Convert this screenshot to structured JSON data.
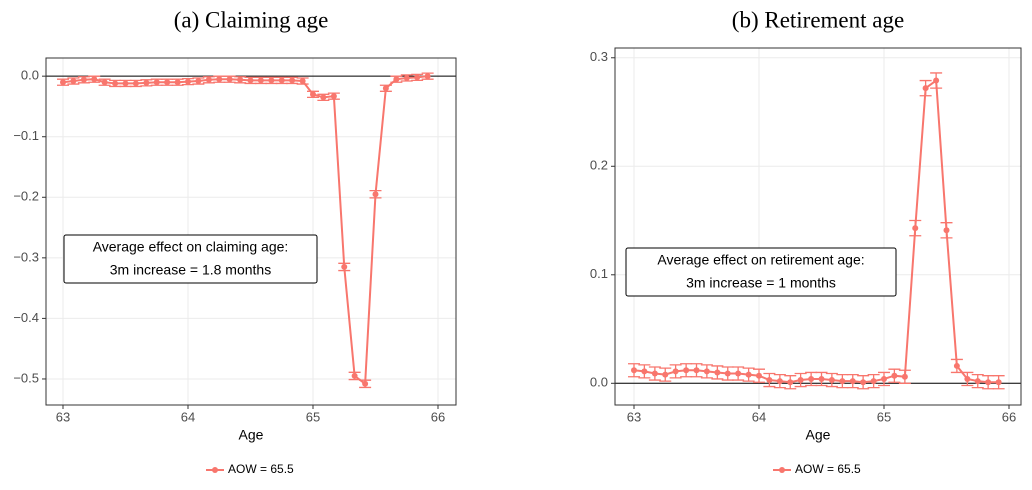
{
  "chart_data": [
    {
      "type": "line",
      "title": "(a) Claiming age",
      "x_label": "Age",
      "x": [
        63,
        63.083,
        63.167,
        63.25,
        63.333,
        63.417,
        63.5,
        63.583,
        63.667,
        63.75,
        63.833,
        63.917,
        64,
        64.083,
        64.167,
        64.25,
        64.333,
        64.417,
        64.5,
        64.583,
        64.667,
        64.75,
        64.833,
        64.917,
        65,
        65.083,
        65.167,
        65.25,
        65.333,
        65.417,
        65.5,
        65.583,
        65.667,
        65.75,
        65.833,
        65.917
      ],
      "series": [
        {
          "name": "AOW = 65.5",
          "color": "#F8766D",
          "values": [
            -0.01,
            -0.008,
            -0.006,
            -0.005,
            -0.01,
            -0.012,
            -0.012,
            -0.012,
            -0.011,
            -0.01,
            -0.01,
            -0.01,
            -0.009,
            -0.008,
            -0.006,
            -0.005,
            -0.005,
            -0.006,
            -0.007,
            -0.007,
            -0.007,
            -0.007,
            -0.007,
            -0.008,
            -0.03,
            -0.035,
            -0.033,
            -0.315,
            -0.495,
            -0.508,
            -0.195,
            -0.02,
            -0.005,
            -0.003,
            -0.002,
            0
          ],
          "errors": [
            0.005,
            0.005,
            0.005,
            0.005,
            0.005,
            0.005,
            0.005,
            0.005,
            0.005,
            0.005,
            0.005,
            0.005,
            0.005,
            0.005,
            0.005,
            0.005,
            0.005,
            0.005,
            0.005,
            0.005,
            0.005,
            0.005,
            0.005,
            0.005,
            0.005,
            0.005,
            0.005,
            0.006,
            0.006,
            0.006,
            0.006,
            0.005,
            0.005,
            0.005,
            0.005,
            0.005
          ]
        }
      ],
      "xlim": [
        62.864,
        66.144
      ],
      "xticks": [
        63,
        64,
        65,
        66
      ],
      "ylim": [
        -0.543,
        0.03
      ],
      "yticks": [
        {
          "value": -0.5,
          "label": "−0.5"
        },
        {
          "value": -0.4,
          "label": "−0.4"
        },
        {
          "value": -0.3,
          "label": "−0.3"
        },
        {
          "value": -0.2,
          "label": "−0.2"
        },
        {
          "value": -0.1,
          "label": "−0.1"
        },
        {
          "value": 0,
          "label": "0.0"
        }
      ],
      "hline": 0,
      "grid": true,
      "annotation": [
        "Average effect on claiming age:",
        "3m increase = 1.8 months"
      ]
    },
    {
      "type": "line",
      "title": "(b) Retirement age",
      "x_label": "Age",
      "x": [
        63,
        63.083,
        63.167,
        63.25,
        63.333,
        63.417,
        63.5,
        63.583,
        63.667,
        63.75,
        63.833,
        63.917,
        64,
        64.083,
        64.167,
        64.25,
        64.333,
        64.417,
        64.5,
        64.583,
        64.667,
        64.75,
        64.833,
        64.917,
        65,
        65.083,
        65.167,
        65.25,
        65.333,
        65.417,
        65.5,
        65.583,
        65.667,
        65.75,
        65.833,
        65.917
      ],
      "series": [
        {
          "name": "AOW = 65.5",
          "color": "#F8766D",
          "values": [
            0.012,
            0.011,
            0.009,
            0.008,
            0.011,
            0.012,
            0.012,
            0.011,
            0.01,
            0.009,
            0.009,
            0.008,
            0.007,
            0.003,
            0.002,
            0.001,
            0.003,
            0.004,
            0.004,
            0.003,
            0.002,
            0.002,
            0.001,
            0.002,
            0.004,
            0.007,
            0.006,
            0.143,
            0.272,
            0.279,
            0.141,
            0.016,
            0.004,
            0.002,
            0.001,
            0.001
          ],
          "errors": [
            0.006,
            0.006,
            0.006,
            0.006,
            0.006,
            0.006,
            0.006,
            0.006,
            0.006,
            0.006,
            0.006,
            0.006,
            0.006,
            0.006,
            0.006,
            0.006,
            0.006,
            0.006,
            0.006,
            0.006,
            0.006,
            0.006,
            0.006,
            0.006,
            0.006,
            0.006,
            0.006,
            0.007,
            0.007,
            0.007,
            0.007,
            0.006,
            0.006,
            0.006,
            0.006,
            0.006
          ]
        }
      ],
      "xlim": [
        62.848,
        66.096
      ],
      "xticks": [
        63,
        64,
        65,
        66
      ],
      "ylim": [
        -0.02,
        0.309
      ],
      "yticks": [
        {
          "value": 0,
          "label": "0.0"
        },
        0.1,
        0.2,
        0.3
      ],
      "hline": 0,
      "grid": true,
      "annotation": [
        "Average effect on retirement age:",
        "3m increase = 1 months"
      ]
    }
  ]
}
